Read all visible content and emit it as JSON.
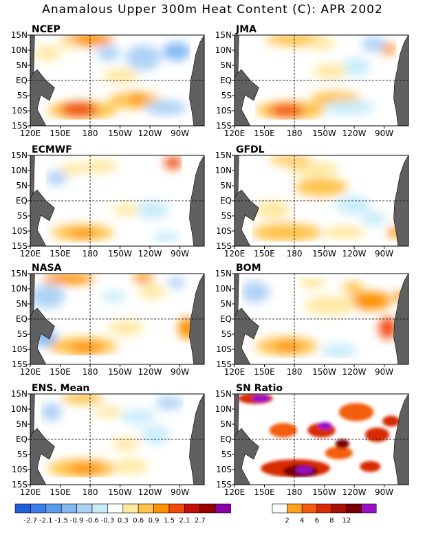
{
  "title": "Anamalous Upper 300m Heat Content (C): APR 2002",
  "chart_data": {
    "type": "heatmap",
    "title": "Anamalous Upper 300m Heat Content (C): APR 2002",
    "panels": [
      {
        "label": "NCEP"
      },
      {
        "label": "JMA"
      },
      {
        "label": "ECMWF"
      },
      {
        "label": "GFDL"
      },
      {
        "label": "NASA"
      },
      {
        "label": "BOM"
      },
      {
        "label": "ENS. Mean"
      },
      {
        "label": "SN Ratio"
      }
    ],
    "x_ticks": [
      "120E",
      "150E",
      "180",
      "150W",
      "120W",
      "90W"
    ],
    "y_ticks": [
      "15N",
      "10N",
      "5N",
      "EQ",
      "5S",
      "10S",
      "15S"
    ],
    "anomaly_colorbar": {
      "levels": [
        "-2.7",
        "-2.1",
        "-1.5",
        "-0.9",
        "-0.6",
        "-0.3",
        "0.3",
        "0.6",
        "0.9",
        "1.5",
        "2.1",
        "2.7"
      ],
      "colors": [
        "#1e5fd6",
        "#3c7fe8",
        "#5c9cf0",
        "#84b8f2",
        "#aed2f6",
        "#c8ecfa",
        "#ffffff",
        "#ffe8a0",
        "#ffc24a",
        "#ff9000",
        "#f24a0a",
        "#c41008",
        "#9a0000",
        "#8a00a8"
      ]
    },
    "sn_colorbar": {
      "levels": [
        "2",
        "4",
        "6",
        "8",
        "12"
      ],
      "colors": [
        "#ffffff",
        "#ffa21e",
        "#f45d0c",
        "#d82a06",
        "#a81004",
        "#7a0000",
        "#9a10c8"
      ]
    },
    "land_color": "#606060"
  }
}
